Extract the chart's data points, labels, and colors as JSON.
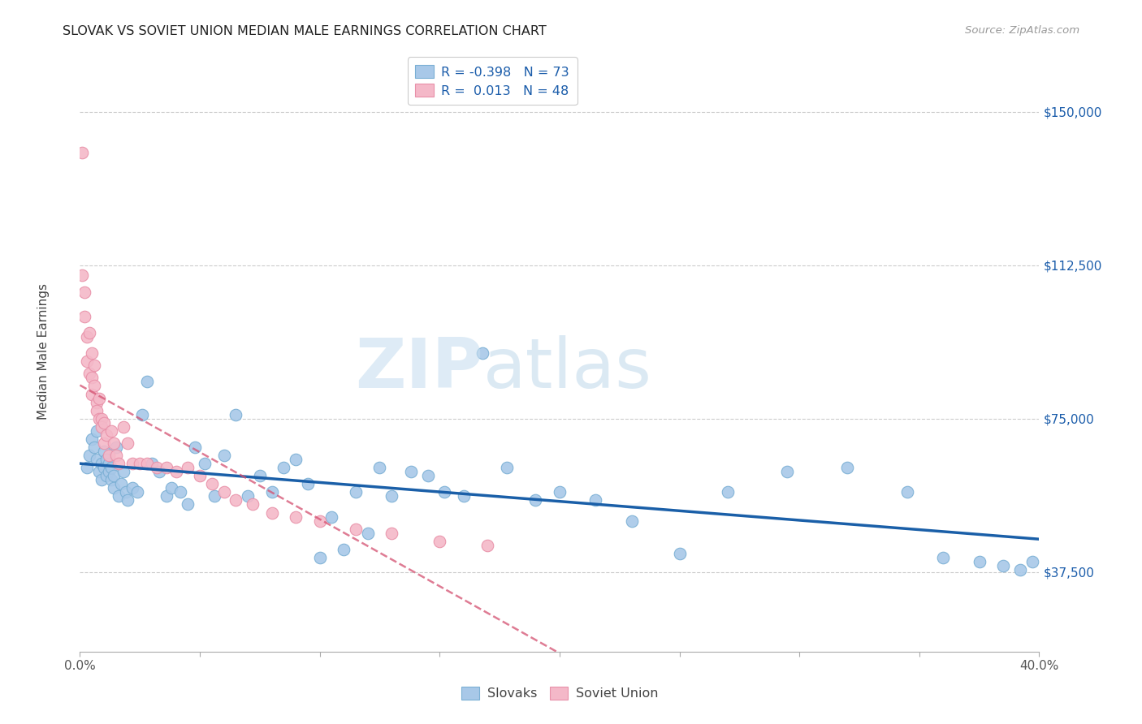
{
  "title": "SLOVAK VS SOVIET UNION MEDIAN MALE EARNINGS CORRELATION CHART",
  "source": "Source: ZipAtlas.com",
  "ylabel": "Median Male Earnings",
  "xlim": [
    0.0,
    0.4
  ],
  "ylim": [
    18000,
    165000
  ],
  "xticks": [
    0.0,
    0.05,
    0.1,
    0.15,
    0.2,
    0.25,
    0.3,
    0.35,
    0.4
  ],
  "xticklabels": [
    "0.0%",
    "",
    "",
    "",
    "",
    "",
    "",
    "",
    "40.0%"
  ],
  "yticks_right": [
    37500,
    75000,
    112500,
    150000
  ],
  "ytick_labels_right": [
    "$37,500",
    "$75,000",
    "$112,500",
    "$150,000"
  ],
  "blue_color": "#a8c8e8",
  "blue_edge": "#7aafd4",
  "pink_color": "#f4b8c8",
  "pink_edge": "#e890a8",
  "trendline_blue": "#1a5fa8",
  "trendline_pink": "#d45070",
  "bg_color": "#ffffff",
  "grid_color": "#cccccc",
  "legend_r_blue": "-0.398",
  "legend_n_blue": "73",
  "legend_r_pink": "0.013",
  "legend_n_pink": "48",
  "text_color_blue": "#1a5caa",
  "watermark_zip": "ZIP",
  "watermark_atlas": "atlas",
  "slovaks_label": "Slovaks",
  "soviet_label": "Soviet Union",
  "slovaks_x": [
    0.003,
    0.004,
    0.005,
    0.006,
    0.007,
    0.007,
    0.008,
    0.009,
    0.009,
    0.01,
    0.01,
    0.011,
    0.011,
    0.012,
    0.012,
    0.013,
    0.013,
    0.014,
    0.014,
    0.015,
    0.016,
    0.017,
    0.018,
    0.019,
    0.02,
    0.022,
    0.024,
    0.026,
    0.028,
    0.03,
    0.033,
    0.036,
    0.038,
    0.042,
    0.045,
    0.048,
    0.052,
    0.056,
    0.06,
    0.065,
    0.07,
    0.075,
    0.08,
    0.085,
    0.09,
    0.095,
    0.1,
    0.105,
    0.11,
    0.115,
    0.12,
    0.125,
    0.13,
    0.138,
    0.145,
    0.152,
    0.16,
    0.168,
    0.178,
    0.19,
    0.2,
    0.215,
    0.23,
    0.25,
    0.27,
    0.295,
    0.32,
    0.345,
    0.36,
    0.375,
    0.385,
    0.392,
    0.397
  ],
  "slovaks_y": [
    63000,
    66000,
    70000,
    68000,
    65000,
    72000,
    62000,
    64000,
    60000,
    67000,
    63000,
    61000,
    65000,
    62000,
    64000,
    60000,
    63000,
    61000,
    58000,
    68000,
    56000,
    59000,
    62000,
    57000,
    55000,
    58000,
    57000,
    76000,
    84000,
    64000,
    62000,
    56000,
    58000,
    57000,
    54000,
    68000,
    64000,
    56000,
    66000,
    76000,
    56000,
    61000,
    57000,
    63000,
    65000,
    59000,
    41000,
    51000,
    43000,
    57000,
    47000,
    63000,
    56000,
    62000,
    61000,
    57000,
    56000,
    91000,
    63000,
    55000,
    57000,
    55000,
    50000,
    42000,
    57000,
    62000,
    63000,
    57000,
    41000,
    40000,
    39000,
    38000,
    40000
  ],
  "soviet_x": [
    0.001,
    0.001,
    0.002,
    0.002,
    0.003,
    0.003,
    0.004,
    0.004,
    0.005,
    0.005,
    0.005,
    0.006,
    0.006,
    0.007,
    0.007,
    0.008,
    0.008,
    0.009,
    0.009,
    0.01,
    0.01,
    0.011,
    0.012,
    0.013,
    0.014,
    0.015,
    0.016,
    0.018,
    0.02,
    0.022,
    0.025,
    0.028,
    0.032,
    0.036,
    0.04,
    0.045,
    0.05,
    0.055,
    0.06,
    0.065,
    0.072,
    0.08,
    0.09,
    0.1,
    0.115,
    0.13,
    0.15,
    0.17
  ],
  "soviet_y": [
    140000,
    110000,
    100000,
    106000,
    95000,
    89000,
    96000,
    86000,
    85000,
    91000,
    81000,
    88000,
    83000,
    79000,
    77000,
    80000,
    75000,
    75000,
    73000,
    74000,
    69000,
    71000,
    66000,
    72000,
    69000,
    66000,
    64000,
    73000,
    69000,
    64000,
    64000,
    64000,
    63000,
    63000,
    62000,
    63000,
    61000,
    59000,
    57000,
    55000,
    54000,
    52000,
    51000,
    50000,
    48000,
    47000,
    45000,
    44000
  ]
}
